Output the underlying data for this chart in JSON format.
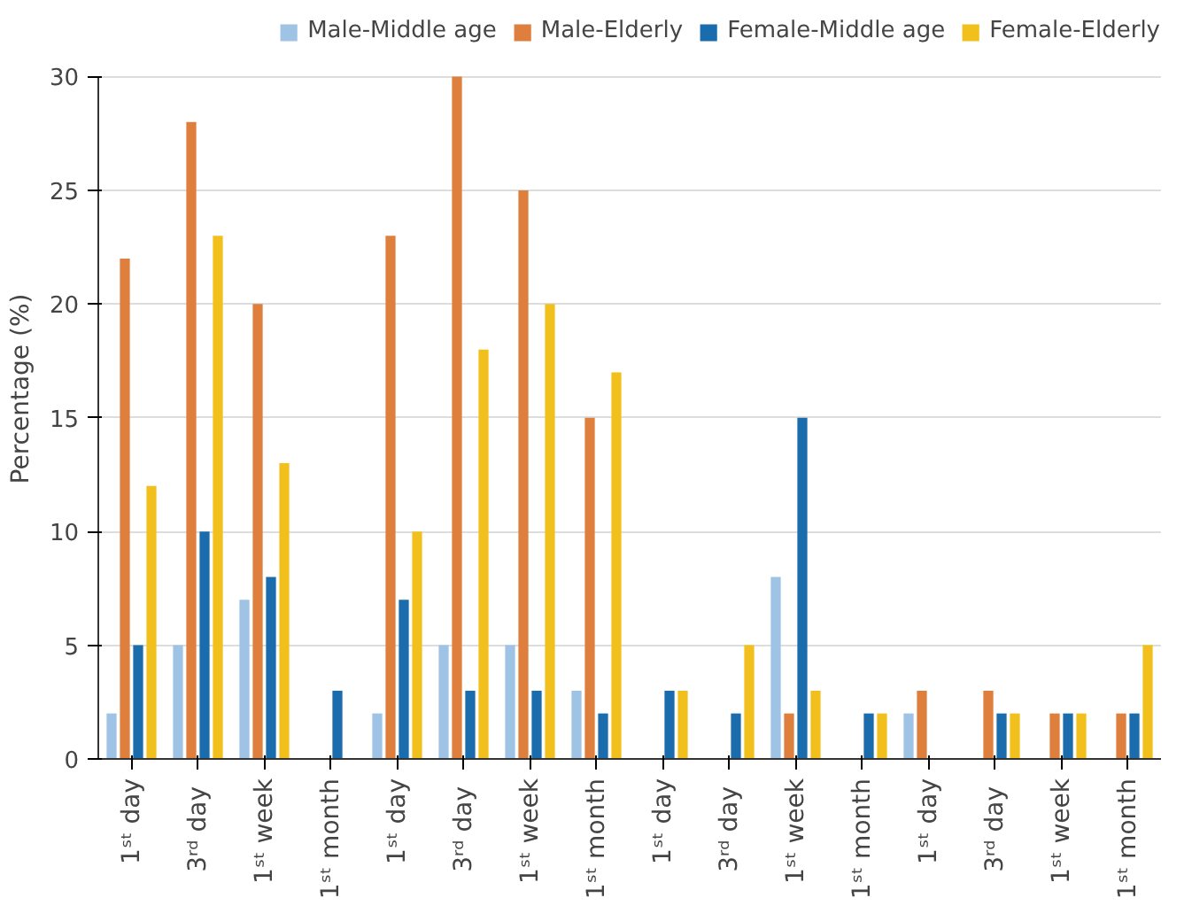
{
  "chart_data": {
    "type": "bar",
    "ylabel": "Percentage (%)",
    "categories": [
      "1ˢᵗ day",
      "3ʳᵈ  day",
      "1ˢᵗ week",
      "1ˢᵗ month",
      "1ˢᵗ day",
      "3ʳᵈ  day",
      "1ˢᵗ week",
      "1ˢᵗ month",
      "1ˢᵗ day",
      "3ʳᵈ  day",
      "1ˢᵗ week",
      "1ˢᵗ month",
      "1ˢᵗ day",
      "3ʳᵈ  day",
      "1ˢᵗ week",
      "1ˢᵗ month"
    ],
    "series": [
      {
        "name": "Male-Middle age",
        "color": "#9fc3e4",
        "values": [
          2,
          5,
          7,
          0,
          2,
          5,
          5,
          3,
          0,
          0,
          8,
          0,
          2,
          0,
          0,
          0
        ]
      },
      {
        "name": "Male-Elderly",
        "color": "#df7f3e",
        "values": [
          22,
          28,
          20,
          0,
          23,
          30,
          25,
          15,
          0,
          0,
          2,
          0,
          3,
          3,
          2,
          2
        ]
      },
      {
        "name": "Female-Middle age",
        "color": "#1a6cad",
        "values": [
          5,
          10,
          8,
          3,
          7,
          3,
          3,
          2,
          3,
          2,
          15,
          2,
          0,
          2,
          2,
          2
        ]
      },
      {
        "name": "Female-Elderly",
        "color": "#f2c01c",
        "values": [
          12,
          23,
          13,
          0,
          10,
          18,
          20,
          17,
          3,
          5,
          3,
          2,
          0,
          2,
          2,
          5
        ]
      }
    ],
    "ylim": [
      0,
      30
    ],
    "yticks": [
      0,
      5,
      10,
      15,
      20,
      25,
      30
    ],
    "grid": "y",
    "legend": "top"
  }
}
